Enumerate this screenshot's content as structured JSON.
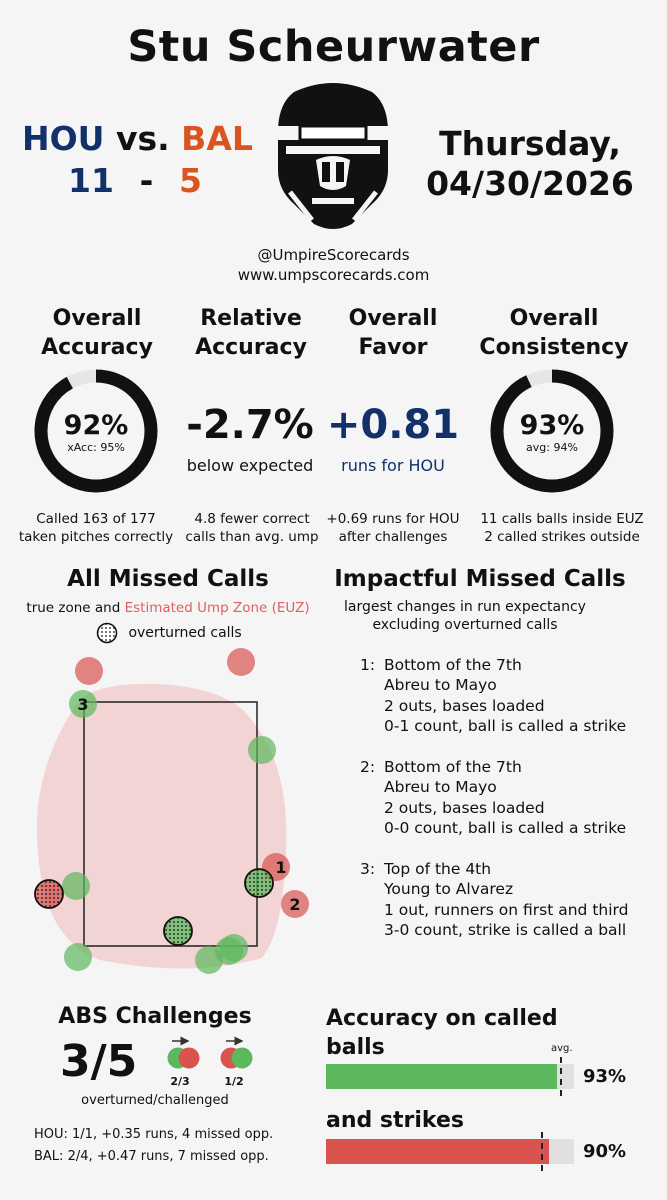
{
  "header": {
    "umpire": "Stu Scheurwater",
    "away_team": "HOU",
    "vs": "vs.",
    "home_team": "BAL",
    "away_score": "11",
    "dash": "-",
    "home_score": "5",
    "date_line1": "Thursday,",
    "date_line2": "04/30/2026",
    "handle": "@UmpireScorecards",
    "website": "www.umpscorecards.com"
  },
  "colors": {
    "hou": "#12316b",
    "bal": "#d9541e",
    "correct": "#5cb85c",
    "missed": "#d9534f",
    "euz": "#f2d0d0"
  },
  "stats": {
    "accuracy": {
      "title1": "Overall",
      "title2": "Accuracy",
      "value": "92%",
      "value_num": 92,
      "sub": "xAcc: 95%",
      "note1": "Called 163 of 177",
      "note2": "taken pitches correctly"
    },
    "relative": {
      "title1": "Relative",
      "title2": "Accuracy",
      "value": "-2.7%",
      "sub": "below expected",
      "note1": "4.8 fewer correct",
      "note2": "calls than avg. ump"
    },
    "favor": {
      "title1": "Overall",
      "title2": "Favor",
      "value": "+0.81",
      "sub": "runs for HOU",
      "note1": "+0.69 runs for HOU",
      "note2": "after challenges"
    },
    "consistency": {
      "title1": "Overall",
      "title2": "Consistency",
      "value": "93%",
      "value_num": 93,
      "sub": "avg: 94%",
      "note1": "11 calls balls inside EUZ",
      "note2": "2 called strikes outside"
    }
  },
  "missed_calls": {
    "title": "All Missed Calls",
    "subtitle_a": "true zone and ",
    "subtitle_b": "Estimated Ump Zone (EUZ)",
    "legend": "overturned calls",
    "labels": [
      "1",
      "2",
      "3"
    ]
  },
  "impactful": {
    "title": "Impactful Missed Calls",
    "subtitle1": "largest changes in run expectancy",
    "subtitle2": "excluding overturned calls",
    "items": [
      {
        "num": "1:",
        "inning": "Bottom of the 7th",
        "matchup": "Abreu to Mayo",
        "situation": "2 outs, bases loaded",
        "call": "0-1 count, ball is called a strike"
      },
      {
        "num": "2:",
        "inning": "Bottom of the 7th",
        "matchup": "Abreu to Mayo",
        "situation": "2 outs, bases loaded",
        "call": "0-0 count, ball is called a strike"
      },
      {
        "num": "3:",
        "inning": "Top of the 4th",
        "matchup": "Young to Alvarez",
        "situation": "1 out, runners on first and third",
        "call": "3-0 count, strike is called a ball"
      }
    ]
  },
  "abs": {
    "title": "ABS Challenges",
    "value": "3/5",
    "left_ratio": "2/3",
    "right_ratio": "1/2",
    "caption": "overturned/challenged",
    "hou_line": "HOU: 1/1, +0.35 runs, 4 missed opp.",
    "bal_line": "BAL: 2/4, +0.47 runs, 7 missed opp."
  },
  "called_accuracy": {
    "title": "Accuracy on called",
    "balls_label": "balls",
    "avg_label": "avg.",
    "balls_value": "93%",
    "balls_pct": 93,
    "strikes_label": "and strikes",
    "strikes_value": "90%",
    "strikes_pct": 90
  }
}
